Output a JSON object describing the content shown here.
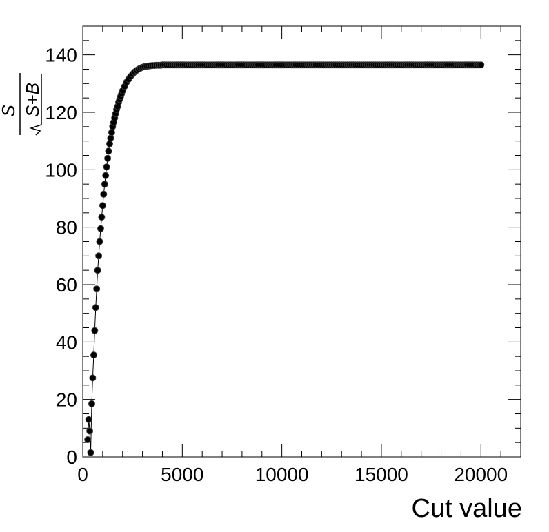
{
  "chart_data": {
    "type": "scatter",
    "title": "",
    "xlabel": "Cut value",
    "ylabel": {
      "numerator": "S",
      "denominator": "S+B"
    },
    "xlim": [
      0,
      22000
    ],
    "ylim": [
      0,
      150
    ],
    "x_ticks": [
      0,
      5000,
      10000,
      15000,
      20000
    ],
    "x_tick_labels": [
      "0",
      "5000",
      "10000",
      "15000",
      "20000"
    ],
    "y_ticks": [
      0,
      20,
      40,
      60,
      80,
      100,
      120,
      140
    ],
    "y_tick_labels": [
      "0",
      "20",
      "40",
      "60",
      "80",
      "100",
      "120",
      "140"
    ],
    "grid": false,
    "legend": "none",
    "marker_color": "#000000",
    "line_color": "#000000",
    "series": [
      {
        "x": [
          250,
          300,
          350,
          400,
          450,
          500,
          550,
          600,
          650,
          700,
          750,
          800,
          850,
          900,
          950,
          1000,
          1050,
          1100,
          1150,
          1200,
          1250,
          1300,
          1350,
          1400,
          1450,
          1500,
          1550,
          1600,
          1650,
          1700,
          1750,
          1800,
          1850,
          1900,
          1950,
          2000,
          2100,
          2200,
          2300,
          2400,
          2500,
          2600,
          2700,
          2800,
          2900,
          3000,
          3100,
          3200,
          3300,
          3400,
          3500,
          3600,
          3700,
          3800,
          3900,
          4000,
          4200,
          4400,
          4600,
          4800,
          5000,
          5500,
          6000,
          7000,
          8000,
          9000,
          10000,
          11000,
          12000,
          13000,
          14000,
          15000,
          16000,
          17000,
          18000,
          19000,
          20000
        ],
        "y": [
          6.0,
          13.0,
          9.0,
          1.5,
          18.5,
          27.5,
          35.5,
          44.0,
          52.0,
          58.5,
          65.0,
          70.0,
          75.0,
          79.5,
          83.5,
          87.5,
          91.5,
          95.0,
          98.0,
          101.0,
          104.0,
          106.5,
          109.0,
          111.0,
          113.0,
          115.0,
          116.5,
          118.0,
          119.5,
          121.0,
          122.0,
          123.5,
          124.5,
          125.5,
          126.5,
          127.5,
          129.0,
          130.5,
          131.5,
          132.5,
          133.3,
          134.0,
          134.6,
          135.0,
          135.4,
          135.7,
          135.9,
          136.0,
          136.1,
          136.2,
          136.3,
          136.3,
          136.4,
          136.4,
          136.4,
          136.5,
          136.5,
          136.5,
          136.5,
          136.5,
          136.5,
          136.5,
          136.5,
          136.5,
          136.5,
          136.5,
          136.5,
          136.5,
          136.5,
          136.5,
          136.5,
          136.5,
          136.5,
          136.5,
          136.5,
          136.5,
          136.5
        ]
      }
    ]
  }
}
